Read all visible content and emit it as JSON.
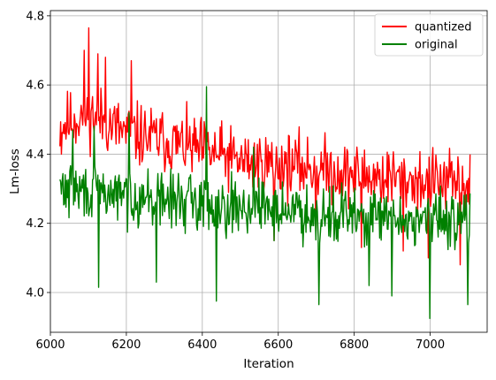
{
  "chart_data": {
    "type": "line",
    "title": "",
    "xlabel": "Iteration",
    "ylabel": "Lm-loss",
    "xlim": [
      6000,
      7150
    ],
    "ylim": [
      3.885,
      4.815
    ],
    "xticks": [
      6000,
      6200,
      6400,
      6600,
      6800,
      7000
    ],
    "yticks": [
      4.0,
      4.2,
      4.4,
      4.6,
      4.8
    ],
    "xtick_labels": [
      "6000",
      "6200",
      "6400",
      "6600",
      "6800",
      "7000"
    ],
    "ytick_labels": [
      "4.0",
      "4.2",
      "4.4",
      "4.6",
      "4.8"
    ],
    "grid": true,
    "legend_position": "top-right",
    "x_start": 6025,
    "x_end": 7105,
    "step": 2,
    "series": [
      {
        "name": "quantized",
        "color": "#ff0000",
        "trend": [
          [
            6025,
            4.48
          ],
          [
            6100,
            4.52
          ],
          [
            6200,
            4.46
          ],
          [
            6300,
            4.44
          ],
          [
            6400,
            4.41
          ],
          [
            6500,
            4.38
          ],
          [
            6600,
            4.37
          ],
          [
            6700,
            4.36
          ],
          [
            6800,
            4.34
          ],
          [
            6900,
            4.33
          ],
          [
            7000,
            4.32
          ],
          [
            7105,
            4.31
          ]
        ],
        "spread": 0.085,
        "seed": 11,
        "peaks": [
          [
            6101,
            4.765
          ],
          [
            6090,
            4.7
          ],
          [
            6125,
            4.69
          ],
          [
            6213,
            4.67
          ],
          [
            6146,
            4.68
          ],
          [
            6030,
            4.4
          ],
          [
            7010,
            4.29
          ]
        ],
        "troughs": [
          [
            6590,
            4.15
          ],
          [
            6700,
            4.16
          ],
          [
            6820,
            4.13
          ],
          [
            6930,
            4.12
          ],
          [
            6995,
            4.1
          ],
          [
            7080,
            4.08
          ]
        ]
      },
      {
        "name": "original",
        "color": "#008000",
        "trend": [
          [
            6025,
            4.3
          ],
          [
            6100,
            4.29
          ],
          [
            6200,
            4.28
          ],
          [
            6300,
            4.27
          ],
          [
            6400,
            4.26
          ],
          [
            6500,
            4.25
          ],
          [
            6600,
            4.24
          ],
          [
            6700,
            4.23
          ],
          [
            6800,
            4.22
          ],
          [
            6900,
            4.21
          ],
          [
            7000,
            4.21
          ],
          [
            7105,
            4.22
          ]
        ],
        "spread": 0.075,
        "seed": 29,
        "peaks": [
          [
            6412,
            4.595
          ],
          [
            6208,
            4.52
          ],
          [
            6115,
            4.48
          ],
          [
            6060,
            4.47
          ],
          [
            6535,
            4.42
          ],
          [
            7100,
            4.32
          ]
        ],
        "troughs": [
          [
            7000,
            3.925
          ],
          [
            6708,
            3.965
          ],
          [
            7100,
            3.965
          ],
          [
            6437,
            3.975
          ],
          [
            6128,
            4.015
          ],
          [
            6900,
            3.99
          ],
          [
            6280,
            4.03
          ],
          [
            6840,
            4.02
          ]
        ]
      }
    ]
  }
}
